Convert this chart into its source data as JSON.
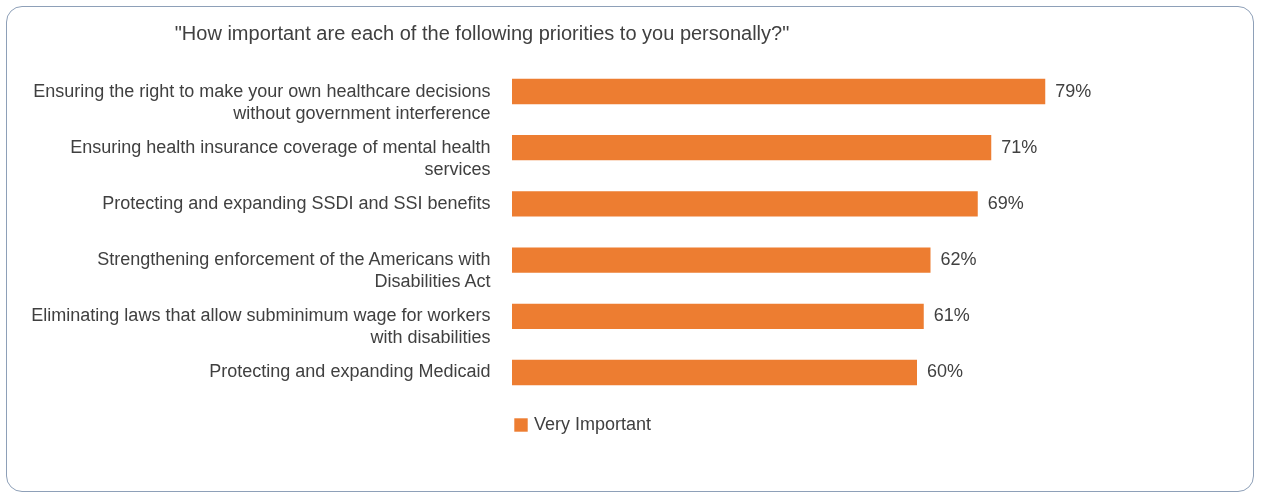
{
  "chart_data": {
    "type": "bar",
    "orientation": "horizontal",
    "title": "\"How important are each of the following priorities to you personally?\"",
    "categories": [
      "Ensuring the right to make your own healthcare decisions without government interference",
      "Ensuring health insurance coverage of mental health services",
      "Protecting and expanding SSDI and SSI benefits",
      "Strengthening enforcement of the Americans with Disabilities Act",
      "Eliminating laws that allow subminimum wage for workers with disabilities",
      "Protecting and expanding Medicaid"
    ],
    "series": [
      {
        "name": "Very Important",
        "color": "#ed7d31",
        "values": [
          79,
          71,
          69,
          62,
          61,
          60
        ],
        "value_labels": [
          "79%",
          "71%",
          "69%",
          "62%",
          "61%",
          "60%"
        ]
      }
    ],
    "legend": "bottom",
    "grid": false
  }
}
